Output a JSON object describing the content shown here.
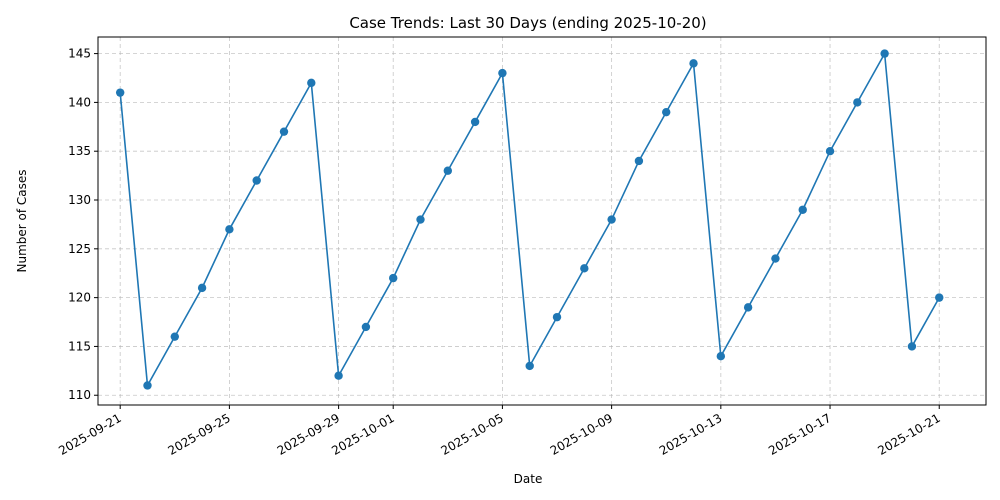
{
  "chart_data": {
    "type": "line",
    "title": "Case Trends: Last 30 Days (ending 2025-10-20)",
    "xlabel": "Date",
    "ylabel": "Number of Cases",
    "x_start": "2025-09-21",
    "x_tick_labels": [
      "2025-09-21",
      "2025-09-25",
      "2025-09-29",
      "2025-10-01",
      "2025-10-05",
      "2025-10-09",
      "2025-10-13",
      "2025-10-17",
      "2025-10-21"
    ],
    "y_ticks": [
      110,
      115,
      120,
      125,
      130,
      135,
      140,
      145
    ],
    "ylim": [
      109,
      146.7
    ],
    "grid": true,
    "series": [
      {
        "x": [
          "2025-09-21",
          "2025-09-22",
          "2025-09-23",
          "2025-09-24",
          "2025-09-25",
          "2025-09-26",
          "2025-09-27",
          "2025-09-28",
          "2025-09-29",
          "2025-09-30",
          "2025-10-01",
          "2025-10-02",
          "2025-10-03",
          "2025-10-04",
          "2025-10-05",
          "2025-10-06",
          "2025-10-07",
          "2025-10-08",
          "2025-10-09",
          "2025-10-10",
          "2025-10-11",
          "2025-10-12",
          "2025-10-13",
          "2025-10-14",
          "2025-10-15",
          "2025-10-16",
          "2025-10-17",
          "2025-10-18",
          "2025-10-19",
          "2025-10-20",
          "2025-10-21"
        ],
        "values": [
          141,
          111,
          116,
          121,
          127,
          132,
          137,
          142,
          112,
          117,
          122,
          128,
          133,
          138,
          143,
          113,
          118,
          123,
          128,
          134,
          139,
          144,
          114,
          119,
          124,
          129,
          135,
          140,
          145,
          115,
          120
        ],
        "color": "#1f77b4"
      }
    ]
  }
}
